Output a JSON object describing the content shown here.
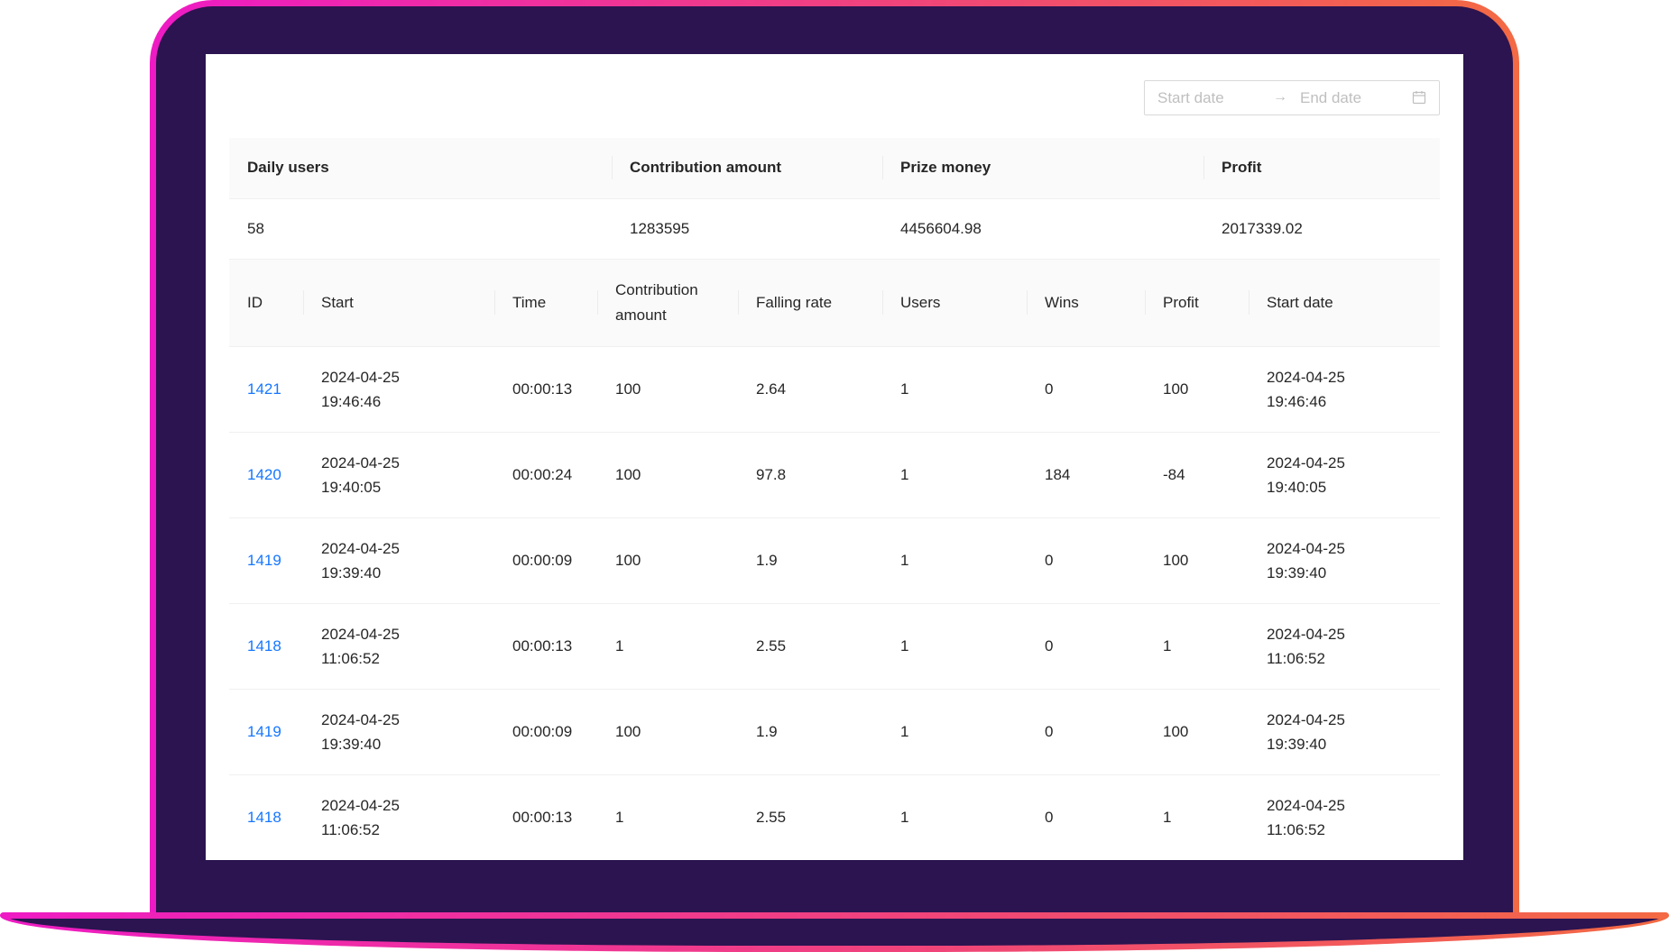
{
  "date_range": {
    "start_placeholder": "Start date",
    "separator": "→",
    "end_placeholder": "End date",
    "icon": "calendar-icon"
  },
  "summary": {
    "headers": [
      "Daily users",
      "Contribution amount",
      "Prize money",
      "Profit"
    ],
    "values": [
      "58",
      "1283595",
      "4456604.98",
      "2017339.02"
    ]
  },
  "table": {
    "headers": {
      "id": "ID",
      "start": "Start",
      "time": "Time",
      "contribution_1": "Contribution",
      "contribution_2": "amount",
      "falling_rate": "Falling rate",
      "users": "Users",
      "wins": "Wins",
      "profit": "Profit",
      "start_date": "Start date"
    },
    "rows": [
      {
        "id": "1421",
        "start_d": "2024-04-25",
        "start_t": "19:46:46",
        "time": "00:00:13",
        "contribution": "100",
        "falling_rate": "2.64",
        "users": "1",
        "wins": "0",
        "profit": "100",
        "sd_d": "2024-04-25",
        "sd_t": "19:46:46"
      },
      {
        "id": "1420",
        "start_d": "2024-04-25",
        "start_t": "19:40:05",
        "time": "00:00:24",
        "contribution": "100",
        "falling_rate": "97.8",
        "users": "1",
        "wins": "184",
        "profit": "-84",
        "sd_d": "2024-04-25",
        "sd_t": "19:40:05"
      },
      {
        "id": "1419",
        "start_d": "2024-04-25",
        "start_t": "19:39:40",
        "time": "00:00:09",
        "contribution": "100",
        "falling_rate": "1.9",
        "users": "1",
        "wins": "0",
        "profit": "100",
        "sd_d": "2024-04-25",
        "sd_t": "19:39:40"
      },
      {
        "id": "1418",
        "start_d": "2024-04-25",
        "start_t": "11:06:52",
        "time": "00:00:13",
        "contribution": "1",
        "falling_rate": "2.55",
        "users": "1",
        "wins": "0",
        "profit": "1",
        "sd_d": "2024-04-25",
        "sd_t": "11:06:52"
      },
      {
        "id": "1419",
        "start_d": "2024-04-25",
        "start_t": "19:39:40",
        "time": "00:00:09",
        "contribution": "100",
        "falling_rate": "1.9",
        "users": "1",
        "wins": "0",
        "profit": "100",
        "sd_d": "2024-04-25",
        "sd_t": "19:39:40"
      },
      {
        "id": "1418",
        "start_d": "2024-04-25",
        "start_t": "11:06:52",
        "time": "00:00:13",
        "contribution": "1",
        "falling_rate": "2.55",
        "users": "1",
        "wins": "0",
        "profit": "1",
        "sd_d": "2024-04-25",
        "sd_t": "11:06:52"
      }
    ]
  },
  "colors": {
    "frame_bezel": "#2b1450",
    "frame_gradient_start": "#ee1bc4",
    "frame_gradient_end": "#f36a43",
    "link": "#1677ff",
    "header_bg": "#fafafa"
  }
}
